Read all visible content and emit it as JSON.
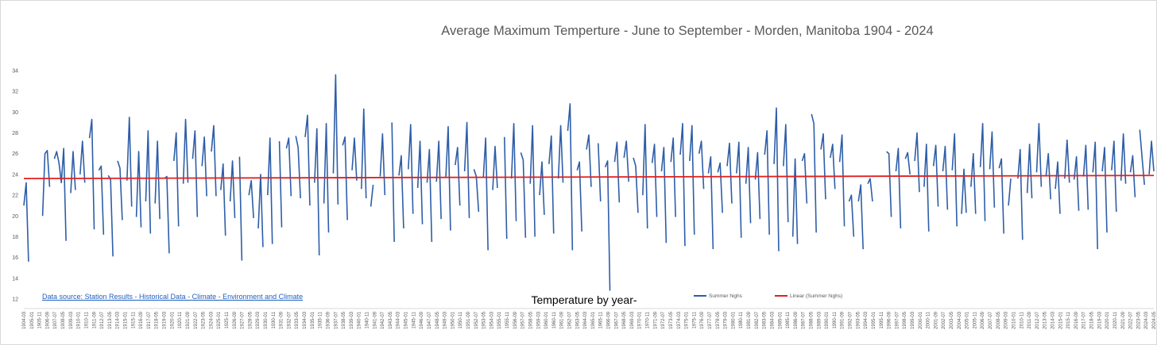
{
  "chart_data": {
    "type": "line",
    "title": "Average Maximum Temperture - June to September - Morden, Manitoba 1904 - 2024",
    "xlabel": "Temperature by year-",
    "ylabel": "",
    "ylim": [
      12,
      34
    ],
    "y_ticks": [
      "12",
      "14",
      "16",
      "18",
      "20",
      "22",
      "24",
      "26",
      "28",
      "30",
      "32",
      "34"
    ],
    "grid": false,
    "legend_position": "bottom",
    "source_note": "Data source: Station Results - Historical Data - Climate - Environment and Climate",
    "x_ticks": [
      "1904-03",
      "1905-01",
      "1905-11",
      "1906-09",
      "1907-07",
      "1908-05",
      "1909-03",
      "1910-01",
      "1910-11",
      "1911-09",
      "1912-07",
      "1913-05",
      "1914-03",
      "1915-01",
      "1915-11",
      "1916-09",
      "1917-07",
      "1918-05",
      "1919-03",
      "1920-01",
      "1920-11",
      "1921-09",
      "1922-07",
      "1923-05",
      "1924-03",
      "1925-01",
      "1925-11",
      "1926-09",
      "1927-07",
      "1928-05",
      "1929-03",
      "1930-01",
      "1930-11",
      "1931-09",
      "1932-07",
      "1933-05",
      "1934-03",
      "1935-01",
      "1935-11",
      "1936-09",
      "1937-07",
      "1938-05",
      "1939-03",
      "1940-01",
      "1940-11",
      "1941-09",
      "1942-07",
      "1943-05",
      "1944-03",
      "1945-01",
      "1945-11",
      "1946-09",
      "1947-07",
      "1948-05",
      "1949-03",
      "1950-01",
      "1950-11",
      "1951-09",
      "1952-07",
      "1953-05",
      "1954-03",
      "1955-01",
      "1955-11",
      "1956-09",
      "1957-07",
      "1958-05",
      "1959-03",
      "1960-01",
      "1960-11",
      "1961-09",
      "1962-07",
      "1963-05",
      "1964-03",
      "1965-01",
      "1965-11",
      "1966-09",
      "1967-07",
      "1968-05",
      "1969-03",
      "1970-01",
      "1970-11",
      "1971-09",
      "1972-07",
      "1973-05",
      "1974-03",
      "1975-01",
      "1975-11",
      "1976-09",
      "1977-07",
      "1978-05",
      "1979-03",
      "1980-01",
      "1980-11",
      "1981-09",
      "1982-07",
      "1983-05",
      "1984-03",
      "1985-01",
      "1985-11",
      "1986-09",
      "1987-07",
      "1988-05",
      "1989-03",
      "1990-01",
      "1990-11",
      "1991-09",
      "1992-07",
      "1993-05",
      "1994-03",
      "1995-01",
      "1995-11",
      "1996-09",
      "1997-07",
      "1998-05",
      "1999-03",
      "2000-01",
      "2000-11",
      "2001-09",
      "2002-07",
      "2003-05",
      "2004-03",
      "2005-01",
      "2005-11",
      "2006-09",
      "2007-07",
      "2008-05",
      "2009-03",
      "2010-01",
      "2010-11",
      "2011-09",
      "2012-07",
      "2013-05",
      "2014-03",
      "2015-01",
      "2015-11",
      "2016-09",
      "2017-07",
      "2018-05",
      "2019-03",
      "2020-01",
      "2020-11",
      "2021-09",
      "2022-07",
      "2023-05",
      "2024-03",
      "2024-05"
    ],
    "series": [
      {
        "name": "Summer highs",
        "color": "#2e5ea8",
        "points_per_year": 4,
        "start_year": 1904,
        "values": [
          21,
          23.2,
          15.6,
          null,
          null,
          null,
          null,
          null,
          20,
          26,
          26.3,
          22.8,
          null,
          25.5,
          26.2,
          25.1,
          23.2,
          26.5,
          17.6,
          null,
          22.2,
          26.2,
          22.5,
          null,
          24,
          27.2,
          23.2,
          null,
          27.5,
          29.3,
          18.7,
          null,
          24.4,
          24.8,
          18.2,
          null,
          23.9,
          23.5,
          16.1,
          null,
          25.3,
          24.6,
          19.6,
          null,
          23.4,
          29.5,
          20.9,
          null,
          19.9,
          26.2,
          18.9,
          null,
          21.4,
          28.2,
          18.3,
          null,
          21.2,
          27.2,
          19.7,
          null,
          23.6,
          23.8,
          16.4,
          null,
          25.3,
          28,
          19,
          null,
          23.1,
          29.3,
          23.2,
          null,
          25.5,
          28.2,
          19.9,
          null,
          24.8,
          27.6,
          21.9,
          null,
          26.2,
          28.7,
          21.9,
          null,
          22.5,
          25,
          18.1,
          null,
          21.4,
          25.3,
          19.8,
          null,
          25.7,
          15.7,
          null,
          null,
          22,
          23.4,
          19.8,
          null,
          18.8,
          24,
          17,
          null,
          22,
          27.5,
          17.3,
          null,
          null,
          27.2,
          18.9,
          null,
          26.5,
          27.5,
          21.9,
          null,
          27.7,
          26.6,
          21.7,
          null,
          27.6,
          29.7,
          21,
          null,
          23.2,
          28.4,
          16.2,
          null,
          21.2,
          28.9,
          18.4,
          null,
          24.1,
          33.6,
          21.1,
          null,
          26.8,
          27.6,
          19.6,
          null,
          24.4,
          27.5,
          23.4,
          null,
          22.6,
          30.3,
          21.7,
          null,
          20.9,
          23,
          null,
          null,
          23.8,
          27.9,
          22,
          null,
          null,
          29,
          17.5,
          null,
          23.9,
          25.8,
          18.8,
          null,
          24.5,
          28.8,
          20.2,
          null,
          22.7,
          27.2,
          19.2,
          null,
          23.2,
          26.4,
          17.5,
          null,
          23.3,
          27.2,
          19.7,
          null,
          23.7,
          28.6,
          18.6,
          null,
          24.9,
          26.6,
          21,
          null,
          24.3,
          29,
          19.8,
          null,
          24.5,
          23.8,
          20.4,
          null,
          23.7,
          27.5,
          16.7,
          null,
          22.5,
          26.7,
          22.7,
          null,
          null,
          27.6,
          17.8,
          null,
          23.6,
          28.9,
          19.5,
          null,
          26.1,
          25.4,
          17.9,
          null,
          23.1,
          28.7,
          18,
          null,
          22,
          25.2,
          20.1,
          null,
          25,
          27.7,
          18.3,
          null,
          23.6,
          28.7,
          23.2,
          null,
          28.2,
          30.8,
          16.7,
          null,
          24.4,
          25.2,
          18.5,
          null,
          26.4,
          27.8,
          22.8,
          null,
          null,
          27,
          21.4,
          null,
          24.7,
          25.3,
          12.8,
          null,
          25.2,
          27.1,
          21.3,
          null,
          25.6,
          27.2,
          23.3,
          null,
          25.6,
          24.8,
          20.3,
          null,
          22,
          28.8,
          18.8,
          null,
          25.1,
          26.9,
          19.9,
          null,
          24.3,
          26.6,
          17.4,
          null,
          25.2,
          27.5,
          19.9,
          null,
          25.9,
          28.9,
          17.1,
          null,
          25.3,
          28.7,
          18.2,
          null,
          26,
          27.2,
          22.6,
          null,
          24.1,
          25.7,
          16.8,
          null,
          24.2,
          25.1,
          20.3,
          null,
          24.8,
          27,
          21.2,
          null,
          24.1,
          27.1,
          17.9,
          null,
          23.1,
          26.6,
          19.3,
          null,
          23.5,
          26.1,
          19.7,
          null,
          25.9,
          28.2,
          18.2,
          null,
          25,
          30.4,
          16.6,
          null,
          24.8,
          28.8,
          19.4,
          null,
          18,
          25.5,
          17.3,
          null,
          25.3,
          26,
          21.2,
          null,
          29.8,
          28.9,
          18.4,
          null,
          26.4,
          27.9,
          21.6,
          null,
          25.6,
          26.9,
          22.6,
          null,
          25.2,
          27.8,
          19,
          null,
          21.4,
          22,
          18,
          null,
          21.4,
          23,
          16.8,
          null,
          23.1,
          23.6,
          21.4,
          null,
          null,
          null,
          null,
          null,
          26.2,
          26,
          19.9,
          null,
          24.3,
          26.5,
          18.8,
          null,
          25.5,
          26.1,
          24,
          null,
          25.3,
          28,
          22.3,
          null,
          22.8,
          26.9,
          18.5,
          null,
          24.8,
          26.8,
          20.9,
          null,
          24.3,
          26.7,
          20.6,
          null,
          24.4,
          27.9,
          19,
          null,
          20.2,
          24.5,
          20.3,
          null,
          22.8,
          26,
          20.2,
          null,
          24.7,
          28.9,
          19.5,
          null,
          24.5,
          28.1,
          20.8,
          null,
          24.6,
          25.5,
          18.3,
          null,
          21,
          23.6,
          null,
          null,
          23.6,
          26.4,
          17.7,
          null,
          22.2,
          26.9,
          21.7,
          null,
          24.2,
          28.9,
          22.8,
          null,
          23.8,
          26,
          21.6,
          null,
          22.6,
          25.2,
          20.2,
          null,
          23.6,
          27.3,
          23.2,
          null,
          23.5,
          25.7,
          20.5,
          null,
          23.8,
          26.8,
          20.6,
          null,
          24.2,
          27.1,
          16.8,
          null,
          24.3,
          26.6,
          18.4,
          null,
          24.4,
          27.2,
          20.4,
          null,
          23.4,
          27.9,
          23.1,
          null,
          24.2,
          25.8,
          21.8,
          null,
          28.3,
          25.6,
          23,
          null,
          24,
          27.2,
          24.3
        ]
      },
      {
        "name": "Linear (Summer highs)",
        "color": "#e02020",
        "values": [
          23.6,
          23.9
        ]
      }
    ]
  }
}
